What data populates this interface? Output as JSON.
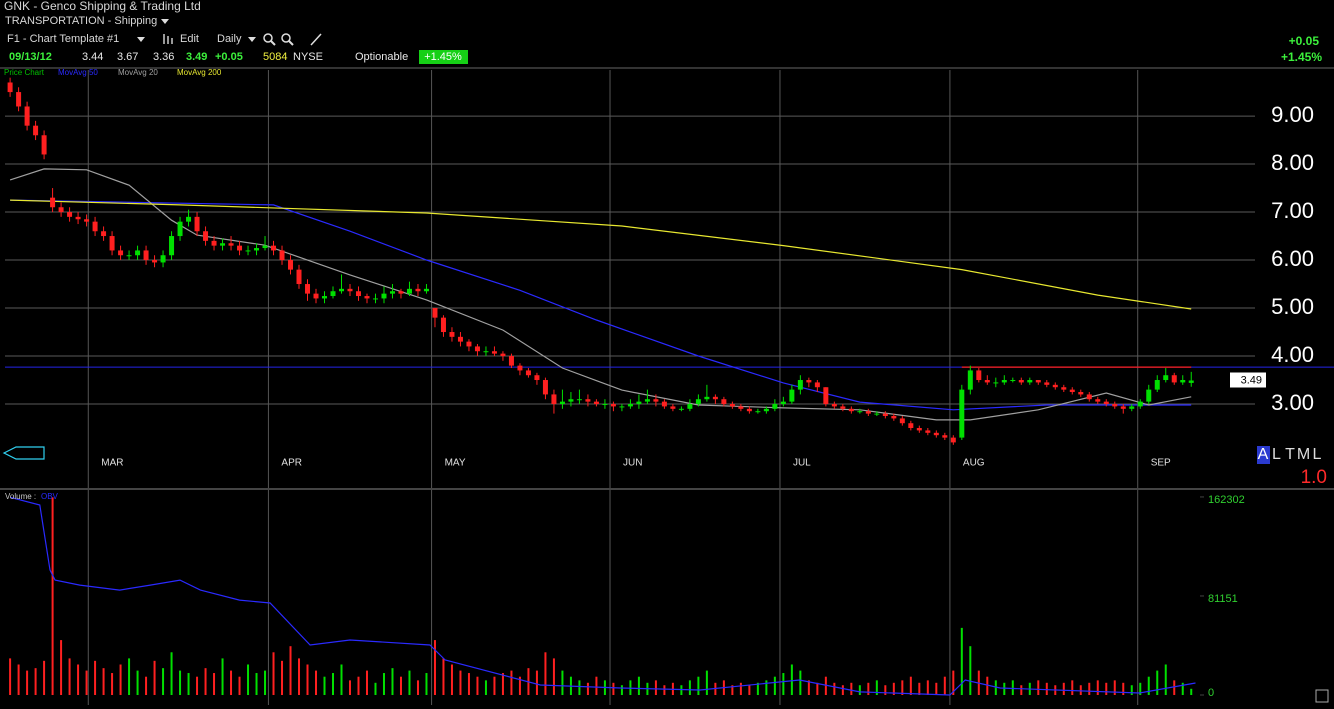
{
  "header": {
    "title": "GNK - Genco Shipping & Trading Ltd",
    "sector": "TRANSPORTATION - Shipping",
    "template": "F1 - Chart Template #1",
    "edit": "Edit",
    "period": "Daily",
    "date": "09/13/12",
    "change": "+0.05",
    "exchange": "NYSE",
    "options": "Optionable",
    "change_pct": "+1.45%"
  },
  "toolbar": {
    "modes": [
      "A",
      "L",
      "T",
      "M",
      "L"
    ],
    "zoom": "1.0"
  },
  "chart_data": [
    {
      "type": "candlestick",
      "name": "Price Chart",
      "name_color": "#00c000",
      "up_color": "#00e000",
      "down_color": "#ff2020",
      "open": [
        9.7,
        9.5,
        9.2,
        8.8,
        8.6,
        7.3,
        7.1,
        7.0,
        6.9,
        6.85,
        6.8,
        6.6,
        6.5,
        6.2,
        6.1,
        6.1,
        6.2,
        6.0,
        5.95,
        6.1,
        6.5,
        6.8,
        6.9,
        6.6,
        6.4,
        6.3,
        6.35,
        6.3,
        6.2,
        6.2,
        6.25,
        6.3,
        6.2,
        6.0,
        5.8,
        5.5,
        5.3,
        5.2,
        5.25,
        5.35,
        5.4,
        5.35,
        5.25,
        5.2,
        5.2,
        5.3,
        5.35,
        5.3,
        5.4,
        5.35,
        5.0,
        4.8,
        4.5,
        4.4,
        4.3,
        4.2,
        4.1,
        4.1,
        4.05,
        4.0,
        3.8,
        3.7,
        3.6,
        3.5,
        3.2,
        3.0,
        3.05,
        3.1,
        3.1,
        3.05,
        3.0,
        3.0,
        2.95,
        2.95,
        3.0,
        3.05,
        3.1,
        3.05,
        2.95,
        2.9,
        2.9,
        3.0,
        3.1,
        3.15,
        3.1,
        3.0,
        2.95,
        2.9,
        2.85,
        2.85,
        2.9,
        3.0,
        3.05,
        3.3,
        3.5,
        3.45,
        3.35,
        3.0,
        2.95,
        2.9,
        2.85,
        2.85,
        2.8,
        2.8,
        2.75,
        2.7,
        2.6,
        2.5,
        2.45,
        2.4,
        2.35,
        2.3,
        2.3,
        3.3,
        3.7,
        3.5,
        3.45,
        3.45,
        3.5,
        3.5,
        3.45,
        3.5,
        3.45,
        3.4,
        3.35,
        3.3,
        3.25,
        3.2,
        3.1,
        3.05,
        3.0,
        2.95,
        2.9,
        2.95,
        3.05,
        3.3,
        3.5,
        3.6,
        3.45,
        3.44
      ],
      "high": [
        9.8,
        9.6,
        9.3,
        8.9,
        8.7,
        7.5,
        7.2,
        7.1,
        7.0,
        6.95,
        6.9,
        6.7,
        6.6,
        6.3,
        6.2,
        6.3,
        6.3,
        6.1,
        6.2,
        6.6,
        6.9,
        7.05,
        7.0,
        6.7,
        6.5,
        6.45,
        6.5,
        6.4,
        6.3,
        6.35,
        6.5,
        6.4,
        6.3,
        6.1,
        5.9,
        5.6,
        5.4,
        5.35,
        5.45,
        5.7,
        5.5,
        5.45,
        5.3,
        5.3,
        5.45,
        5.5,
        5.4,
        5.55,
        5.5,
        5.5,
        5.0,
        4.85,
        4.6,
        4.5,
        4.35,
        4.25,
        4.2,
        4.2,
        4.1,
        4.05,
        3.85,
        3.75,
        3.65,
        3.55,
        3.3,
        3.3,
        3.25,
        3.3,
        3.2,
        3.1,
        3.1,
        3.05,
        3.0,
        3.1,
        3.2,
        3.3,
        3.2,
        3.1,
        3.0,
        2.95,
        3.1,
        3.2,
        3.4,
        3.2,
        3.15,
        3.05,
        3.0,
        2.95,
        2.9,
        2.95,
        3.1,
        3.15,
        3.4,
        3.6,
        3.55,
        3.5,
        3.35,
        3.05,
        3.0,
        2.95,
        2.9,
        2.9,
        2.85,
        2.85,
        2.8,
        2.75,
        2.65,
        2.55,
        2.5,
        2.45,
        2.4,
        2.35,
        3.4,
        3.8,
        3.75,
        3.6,
        3.55,
        3.6,
        3.55,
        3.55,
        3.55,
        3.5,
        3.5,
        3.45,
        3.4,
        3.35,
        3.3,
        3.25,
        3.15,
        3.1,
        3.05,
        3.0,
        3.0,
        3.1,
        3.4,
        3.6,
        3.75,
        3.65,
        3.6,
        3.67
      ],
      "low": [
        9.4,
        9.1,
        8.7,
        8.5,
        8.1,
        7.0,
        6.9,
        6.8,
        6.75,
        6.7,
        6.5,
        6.4,
        6.1,
        6.0,
        6.0,
        6.0,
        5.9,
        5.85,
        5.85,
        6.0,
        6.4,
        6.7,
        6.5,
        6.3,
        6.2,
        6.2,
        6.2,
        6.1,
        6.1,
        6.1,
        6.2,
        6.1,
        5.9,
        5.7,
        5.4,
        5.15,
        5.1,
        5.1,
        5.2,
        5.3,
        5.25,
        5.15,
        5.1,
        5.1,
        5.1,
        5.2,
        5.2,
        5.25,
        5.25,
        5.3,
        4.6,
        4.4,
        4.3,
        4.2,
        4.1,
        4.0,
        4.0,
        4.0,
        3.9,
        3.75,
        3.6,
        3.55,
        3.4,
        3.1,
        2.8,
        2.9,
        2.95,
        3.0,
        2.95,
        2.95,
        2.9,
        2.85,
        2.85,
        2.9,
        2.9,
        3.0,
        2.95,
        2.9,
        2.85,
        2.85,
        2.85,
        2.95,
        3.05,
        3.0,
        2.95,
        2.9,
        2.85,
        2.8,
        2.8,
        2.8,
        2.85,
        2.95,
        3.0,
        3.2,
        3.35,
        3.25,
        2.95,
        2.9,
        2.85,
        2.8,
        2.8,
        2.75,
        2.75,
        2.7,
        2.65,
        2.55,
        2.45,
        2.4,
        2.35,
        2.3,
        2.25,
        2.15,
        2.25,
        3.2,
        3.45,
        3.4,
        3.35,
        3.4,
        3.45,
        3.4,
        3.4,
        3.4,
        3.35,
        3.3,
        3.25,
        3.2,
        3.15,
        3.05,
        3.0,
        2.95,
        2.9,
        2.8,
        2.85,
        2.9,
        3.0,
        3.25,
        3.45,
        3.4,
        3.4,
        3.36
      ],
      "close": [
        9.5,
        9.2,
        8.8,
        8.6,
        8.2,
        7.1,
        7.0,
        6.9,
        6.85,
        6.8,
        6.6,
        6.5,
        6.2,
        6.1,
        6.1,
        6.2,
        6.0,
        5.95,
        6.1,
        6.5,
        6.8,
        6.9,
        6.6,
        6.4,
        6.3,
        6.35,
        6.3,
        6.2,
        6.2,
        6.25,
        6.3,
        6.2,
        6.0,
        5.8,
        5.5,
        5.3,
        5.2,
        5.25,
        5.35,
        5.4,
        5.35,
        5.25,
        5.2,
        5.2,
        5.3,
        5.35,
        5.3,
        5.4,
        5.35,
        5.4,
        4.8,
        4.5,
        4.4,
        4.3,
        4.2,
        4.1,
        4.1,
        4.05,
        4.0,
        3.8,
        3.7,
        3.6,
        3.5,
        3.2,
        3.0,
        3.05,
        3.1,
        3.1,
        3.05,
        3.0,
        3.0,
        2.95,
        2.95,
        3.0,
        3.05,
        3.1,
        3.05,
        2.95,
        2.9,
        2.9,
        3.0,
        3.1,
        3.15,
        3.1,
        3.0,
        2.95,
        2.9,
        2.85,
        2.85,
        2.9,
        3.0,
        3.05,
        3.3,
        3.5,
        3.45,
        3.35,
        3.0,
        2.95,
        2.9,
        2.85,
        2.85,
        2.8,
        2.8,
        2.75,
        2.7,
        2.6,
        2.5,
        2.45,
        2.4,
        2.35,
        2.3,
        2.2,
        3.3,
        3.7,
        3.5,
        3.45,
        3.45,
        3.5,
        3.5,
        3.45,
        3.5,
        3.45,
        3.4,
        3.35,
        3.3,
        3.25,
        3.2,
        3.1,
        3.05,
        3.0,
        2.95,
        2.9,
        2.95,
        3.05,
        3.3,
        3.5,
        3.6,
        3.45,
        3.5,
        3.49
      ],
      "series": [
        {
          "name": "MovAvg 50",
          "color": "#2a2aff",
          "x": [
            0,
            31,
            40,
            49,
            60,
            69,
            81,
            91,
            100,
            111,
            122,
            139
          ],
          "values": [
            7.25,
            7.15,
            6.6,
            6.0,
            5.37,
            4.75,
            4.0,
            3.44,
            3.04,
            2.88,
            2.98,
            2.98
          ]
        },
        {
          "name": "MovAvg 20",
          "color": "#a0a0a0",
          "x": [
            0,
            4,
            9,
            14,
            19,
            22,
            30,
            40,
            49,
            58,
            65,
            72,
            81,
            91,
            100,
            109,
            113,
            121,
            129,
            134,
            139
          ],
          "values": [
            7.67,
            7.9,
            7.88,
            7.56,
            6.83,
            6.52,
            6.31,
            5.69,
            5.17,
            4.54,
            3.75,
            3.29,
            2.98,
            2.92,
            2.88,
            2.67,
            2.67,
            2.88,
            3.23,
            2.98,
            3.15
          ]
        },
        {
          "name": "MovAvg 200",
          "color": "#e8e830",
          "x": [
            0,
            20,
            49,
            72,
            91,
            112,
            128,
            139
          ],
          "values": [
            7.25,
            7.15,
            6.98,
            6.71,
            6.3,
            5.8,
            5.27,
            4.98
          ]
        }
      ],
      "hline": {
        "value": 3.77,
        "color": "#2424e8"
      },
      "trendline": {
        "x": [
          112,
          139
        ],
        "values": [
          3.77,
          3.77
        ],
        "color": "#ff2020"
      },
      "xlim": [
        -0.6,
        155.8
      ],
      "xticks": [
        {
          "value": 9.2,
          "label": "MAR"
        },
        {
          "value": 30.4,
          "label": "APR"
        },
        {
          "value": 49.6,
          "label": "MAY"
        },
        {
          "value": 70.6,
          "label": "JUN"
        },
        {
          "value": 90.6,
          "label": "JUL"
        },
        {
          "value": 110.6,
          "label": "AUG"
        },
        {
          "value": 132.7,
          "label": "SEP"
        }
      ],
      "ylim": [
        1.25,
        9.96
      ],
      "yticks": [
        {
          "value": 3,
          "label": "3.00"
        },
        {
          "value": 4,
          "label": "4.00"
        },
        {
          "value": 5,
          "label": "5.00"
        },
        {
          "value": 6,
          "label": "6.00"
        },
        {
          "value": 7,
          "label": "7.00"
        },
        {
          "value": 8,
          "label": "8.00"
        },
        {
          "value": 9,
          "label": "9.00"
        }
      ],
      "grid": true
    },
    {
      "type": "bar",
      "title": "Volume :",
      "values": [
        30000,
        25000,
        20000,
        22000,
        28000,
        162000,
        45000,
        30000,
        25000,
        20000,
        28000,
        22000,
        18000,
        25000,
        30000,
        20000,
        15000,
        28000,
        22000,
        35000,
        20000,
        18000,
        15000,
        22000,
        18000,
        30000,
        20000,
        15000,
        25000,
        18000,
        20000,
        35000,
        28000,
        40000,
        30000,
        25000,
        20000,
        15000,
        18000,
        25000,
        12000,
        15000,
        20000,
        10000,
        18000,
        22000,
        15000,
        20000,
        12000,
        18000,
        45000,
        30000,
        25000,
        20000,
        18000,
        15000,
        12000,
        15000,
        18000,
        20000,
        15000,
        22000,
        20000,
        35000,
        30000,
        20000,
        15000,
        12000,
        10000,
        15000,
        12000,
        10000,
        8000,
        12000,
        15000,
        10000,
        12000,
        8000,
        10000,
        8000,
        12000,
        15000,
        20000,
        10000,
        12000,
        8000,
        10000,
        8000,
        10000,
        12000,
        15000,
        18000,
        25000,
        20000,
        12000,
        10000,
        15000,
        10000,
        8000,
        10000,
        8000,
        10000,
        12000,
        8000,
        10000,
        12000,
        15000,
        10000,
        12000,
        10000,
        15000,
        20000,
        55000,
        40000,
        20000,
        15000,
        12000,
        10000,
        12000,
        8000,
        10000,
        12000,
        10000,
        8000,
        10000,
        12000,
        8000,
        10000,
        12000,
        10000,
        12000,
        10000,
        8000,
        10000,
        15000,
        20000,
        25000,
        12000,
        10000,
        5084
      ],
      "series": [
        {
          "name": "OBV",
          "color": "#2a2aff",
          "x": [
            0,
            3.5,
            4.7,
            5.3,
            8.2,
            12.9,
            16.5,
            20,
            22.4,
            27,
            30.6,
            35.3,
            40,
            49.4,
            51.2,
            62.4,
            71.8,
            81.2,
            92.9,
            100,
            110.6,
            112.4,
            116.5,
            132.9,
            139.5
          ],
          "values": [
            162000,
            155700,
            102400,
            94200,
            90100,
            86000,
            90100,
            94200,
            86000,
            77800,
            75400,
            41000,
            45100,
            41000,
            28700,
            8200,
            5700,
            4100,
            12300,
            2500,
            0,
            12300,
            5700,
            1600,
            9800
          ]
        }
      ],
      "xlim": [
        -0.6,
        155.8
      ],
      "ylim": [
        0,
        168000
      ],
      "yticks": [
        0,
        81151,
        162302
      ],
      "grid": true
    }
  ]
}
